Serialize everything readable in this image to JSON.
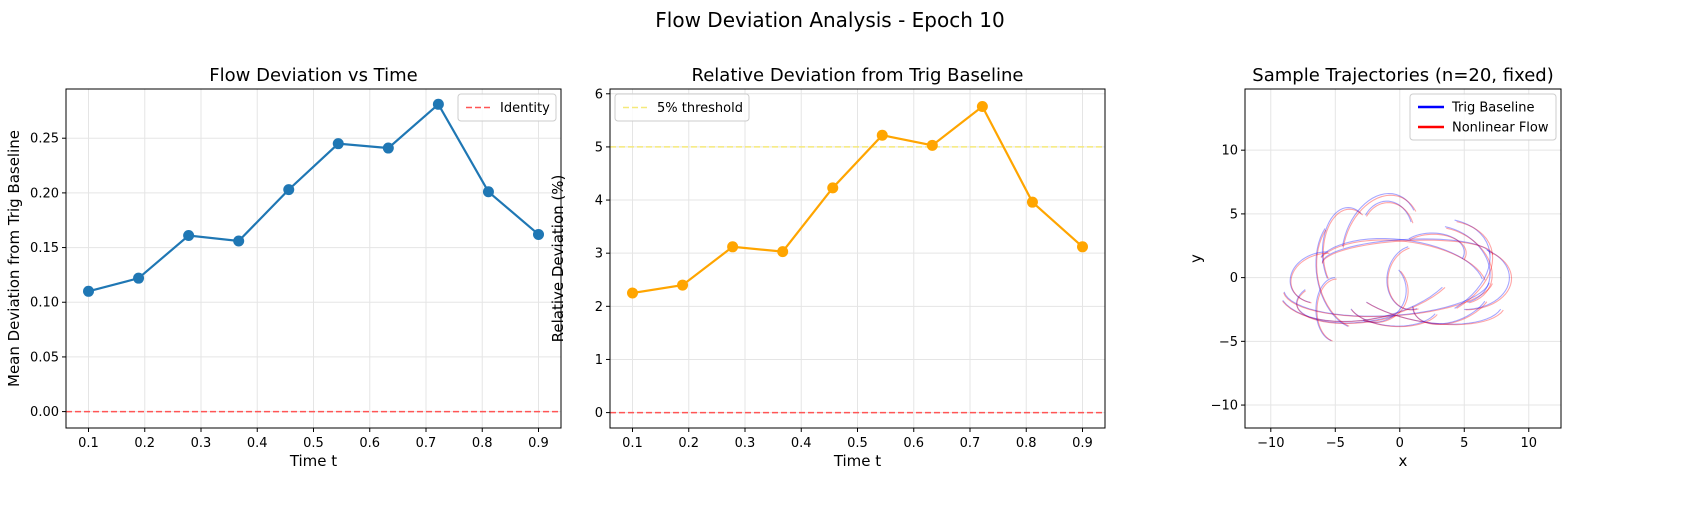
{
  "figure": {
    "suptitle": "Flow Deviation Analysis - Epoch 10"
  },
  "chart_data": [
    {
      "type": "line",
      "title": "Flow Deviation vs Time",
      "xlabel": "Time t",
      "ylabel": "Mean Deviation from Trig Baseline",
      "xlim": [
        0.06,
        0.94
      ],
      "ylim": [
        -0.015,
        0.295
      ],
      "xticks": [
        "0.1",
        "0.2",
        "0.3",
        "0.4",
        "0.5",
        "0.6",
        "0.7",
        "0.8",
        "0.9"
      ],
      "yticks": [
        "0.00",
        "0.05",
        "0.10",
        "0.15",
        "0.20",
        "0.25"
      ],
      "grid": true,
      "legend_placement": "top-right",
      "x": [
        0.1,
        0.189,
        0.278,
        0.367,
        0.456,
        0.544,
        0.633,
        0.722,
        0.811,
        0.9
      ],
      "series": [
        {
          "values": [
            0.11,
            0.122,
            0.161,
            0.156,
            0.203,
            0.245,
            0.241,
            0.281,
            0.201,
            0.162
          ],
          "color": "#1f77b4"
        }
      ],
      "hlines": [
        {
          "name": "Identity",
          "y": 0,
          "color": "#ff5555",
          "style": "dashed"
        }
      ]
    },
    {
      "type": "line",
      "title": "Relative Deviation from Trig Baseline",
      "xlabel": "Time t",
      "ylabel": "Relative Deviation (%)",
      "xlim": [
        0.06,
        0.94
      ],
      "ylim": [
        -0.29,
        6.09
      ],
      "xticks": [
        "0.1",
        "0.2",
        "0.3",
        "0.4",
        "0.5",
        "0.6",
        "0.7",
        "0.8",
        "0.9"
      ],
      "yticks": [
        "0",
        "1",
        "2",
        "3",
        "4",
        "5",
        "6"
      ],
      "grid": true,
      "legend_placement": "top-left",
      "x": [
        0.1,
        0.189,
        0.278,
        0.367,
        0.456,
        0.544,
        0.633,
        0.722,
        0.811,
        0.9
      ],
      "series": [
        {
          "values": [
            2.25,
            2.4,
            3.12,
            3.03,
            4.23,
            5.22,
            5.03,
            5.76,
            3.96,
            3.12
          ],
          "color": "#ffa500"
        }
      ],
      "hlines": [
        {
          "name": "5% threshold",
          "y": 5,
          "color": "#f5e97a",
          "style": "dashed"
        },
        {
          "y": 0,
          "color": "#ff5555",
          "style": "dashed"
        }
      ]
    },
    {
      "type": "line",
      "title": "Sample Trajectories (n=20, fixed)",
      "xlabel": "x",
      "ylabel": "y",
      "xlim": [
        -12,
        12.5
      ],
      "ylim": [
        -11.8,
        14.8
      ],
      "xticks": [
        "−10",
        "−5",
        "0",
        "5",
        "10"
      ],
      "yticks": [
        "−10",
        "−5",
        "0",
        "5",
        "10"
      ],
      "grid": true,
      "legend_placement": "top-right",
      "series": [
        {
          "name": "Trig Baseline",
          "color": "#0000ff"
        },
        {
          "name": "Nonlinear Flow",
          "color": "#ff0000"
        }
      ]
    }
  ]
}
